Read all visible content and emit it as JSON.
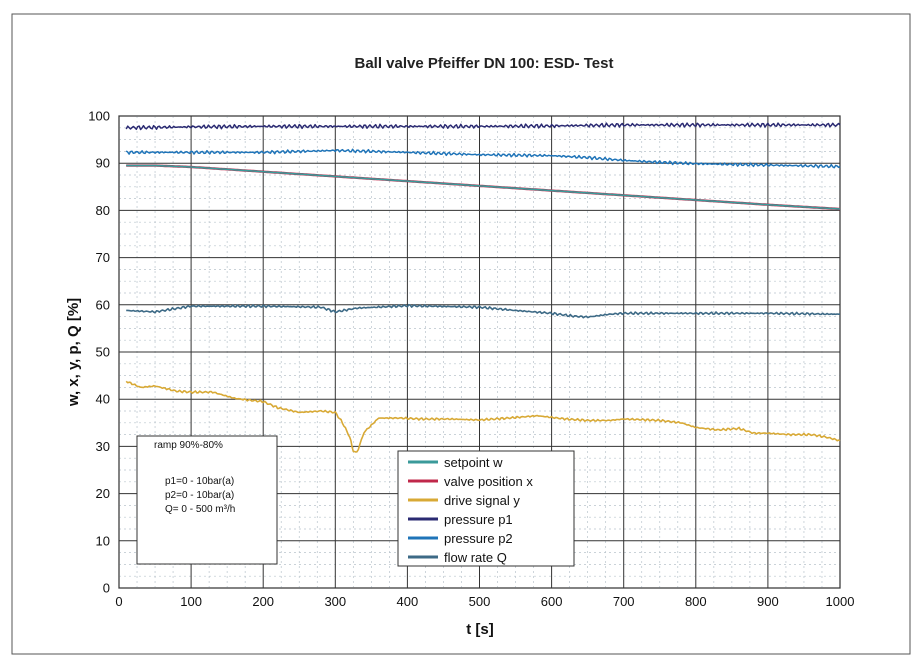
{
  "chart_data": {
    "type": "line",
    "title": "Ball valve Pfeiffer DN 100: ESD- Test",
    "xlabel": "t [s]",
    "ylabel": "w, x, y, p, Q [%]",
    "xlim": [
      0,
      1000
    ],
    "ylim": [
      0,
      100
    ],
    "x_ticks": [
      "0",
      "100",
      "200",
      "300",
      "400",
      "500",
      "600",
      "700",
      "800",
      "900",
      "1000"
    ],
    "y_ticks": [
      "0",
      "10",
      "20",
      "30",
      "40",
      "50",
      "60",
      "70",
      "80",
      "90",
      "100"
    ],
    "grid": true,
    "legend_position": "bottom-center",
    "annotation_lines": [
      "ramp 90%-80%",
      "p1=0 - 10bar(a)",
      "p2=0 - 10bar(a)",
      "Q= 0 - 500 m³/h"
    ],
    "series": [
      {
        "name": "setpoint w",
        "color": "#3a9a9a",
        "x": [
          10,
          50,
          100,
          200,
          300,
          400,
          500,
          600,
          700,
          800,
          900,
          1000
        ],
        "y": [
          89.5,
          89.5,
          89.2,
          88.2,
          87.2,
          86.2,
          85.2,
          84.2,
          83.2,
          82.2,
          81.2,
          80.3
        ]
      },
      {
        "name": "valve position x",
        "color": "#c0284a",
        "x": [
          10,
          50,
          100,
          200,
          300,
          400,
          500,
          600,
          700,
          800,
          900,
          1000
        ],
        "y": [
          89.5,
          89.5,
          89.2,
          88.2,
          87.2,
          86.2,
          85.2,
          84.2,
          83.2,
          82.2,
          81.2,
          80.3
        ]
      },
      {
        "name": "drive signal y",
        "color": "#d8a935",
        "x": [
          10,
          30,
          50,
          80,
          100,
          130,
          160,
          180,
          200,
          220,
          250,
          280,
          300,
          310,
          320,
          325,
          330,
          340,
          360,
          390,
          420,
          460,
          500,
          540,
          580,
          620,
          650,
          680,
          700,
          720,
          750,
          780,
          800,
          830,
          860,
          880,
          900,
          930,
          960,
          980,
          1000
        ],
        "y": [
          43.8,
          42.5,
          42.8,
          41.7,
          41.5,
          41.5,
          40.2,
          39.8,
          39.5,
          38.2,
          37.2,
          37.5,
          37.2,
          35,
          32,
          29,
          28.7,
          33,
          36,
          36,
          35.8,
          35.8,
          35.6,
          36,
          36.5,
          35.8,
          35.5,
          35.5,
          35.8,
          35.7,
          35.5,
          35,
          34,
          33.5,
          33.8,
          32.8,
          32.8,
          32.5,
          32.5,
          32,
          31.2
        ]
      },
      {
        "name": "pressure p1",
        "color": "#2a2a72",
        "x": [
          10,
          100,
          200,
          300,
          400,
          500,
          600,
          700,
          800,
          900,
          1000
        ],
        "y": [
          97.5,
          97.7,
          97.8,
          97.8,
          97.8,
          97.8,
          97.9,
          98.1,
          98.1,
          98.1,
          98.1
        ]
      },
      {
        "name": "pressure p2",
        "color": "#1f74b8",
        "x": [
          10,
          100,
          200,
          300,
          400,
          500,
          600,
          650,
          700,
          750,
          800,
          900,
          1000
        ],
        "y": [
          92.3,
          92.3,
          92.3,
          92.7,
          92.3,
          91.8,
          91.6,
          91.2,
          90.6,
          90.2,
          89.9,
          89.6,
          89.3
        ]
      },
      {
        "name": "flow rate Q",
        "color": "#3d6a86",
        "x": [
          10,
          50,
          70,
          100,
          200,
          280,
          300,
          330,
          400,
          500,
          550,
          600,
          630,
          650,
          680,
          700,
          800,
          900,
          1000
        ],
        "y": [
          58.8,
          58.5,
          59,
          59.7,
          59.7,
          59.5,
          58.5,
          59.3,
          59.8,
          59.5,
          58.8,
          58.2,
          57.6,
          57.4,
          58,
          58.2,
          58.2,
          58.2,
          58
        ]
      }
    ]
  }
}
